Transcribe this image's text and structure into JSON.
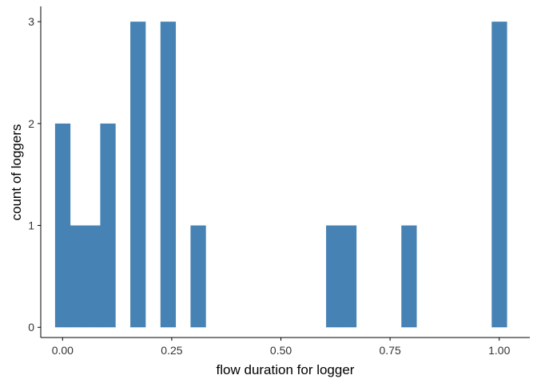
{
  "chart_data": {
    "type": "bar",
    "xlabel": "flow duration for logger",
    "ylabel": "count of loggers",
    "x_ticks": [
      0.0,
      0.25,
      0.5,
      0.75,
      1.0
    ],
    "x_tick_labels": [
      "0.00",
      "0.25",
      "0.50",
      "0.75",
      "1.00"
    ],
    "y_ticks": [
      0,
      1,
      2,
      3
    ],
    "y_tick_labels": [
      "0",
      "1",
      "2",
      "3"
    ],
    "xlim": [
      -0.05,
      1.07
    ],
    "ylim": [
      -0.1,
      3.15
    ],
    "bin_width": 0.0345,
    "bins": [
      {
        "x": 0.0,
        "count": 2
      },
      {
        "x": 0.0345,
        "count": 1
      },
      {
        "x": 0.069,
        "count": 1
      },
      {
        "x": 0.1035,
        "count": 2
      },
      {
        "x": 0.1724,
        "count": 3
      },
      {
        "x": 0.2414,
        "count": 3
      },
      {
        "x": 0.3103,
        "count": 1
      },
      {
        "x": 0.6207,
        "count": 1
      },
      {
        "x": 0.6552,
        "count": 1
      },
      {
        "x": 0.7931,
        "count": 1
      },
      {
        "x": 1.0,
        "count": 3
      }
    ],
    "bar_color": "#4682B4",
    "grid": false
  }
}
